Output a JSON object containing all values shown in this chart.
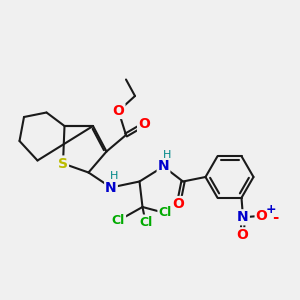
{
  "background_color": "#f0f0f0",
  "bond_color": "#1a1a1a",
  "bond_width": 1.5,
  "dbo": 0.055,
  "atom_colors": {
    "S": "#bbbb00",
    "O": "#ff0000",
    "N": "#0000cc",
    "Cl": "#00aa00",
    "H_label": "#008888",
    "C": "#1a1a1a",
    "plus": "#0000cc",
    "minus": "#ff0000"
  },
  "figsize": [
    3.0,
    3.0
  ],
  "dpi": 100
}
